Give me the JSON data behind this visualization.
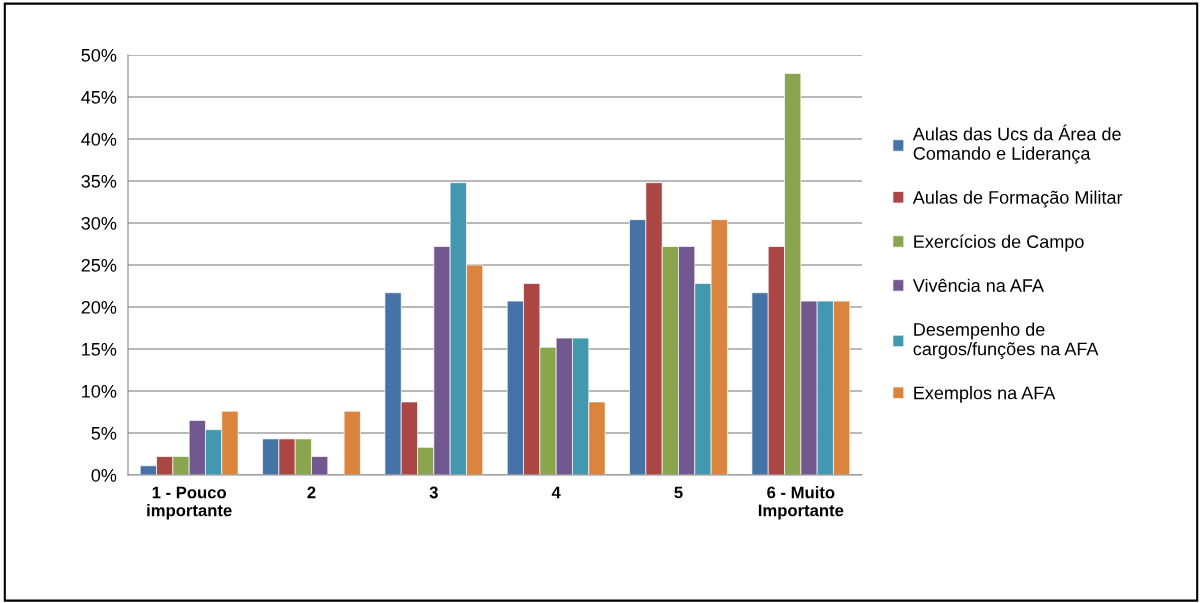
{
  "chart_data": {
    "type": "bar",
    "categories": [
      "1 - Pouco importante",
      "2",
      "3",
      "4",
      "5",
      "6 - Muito Importante"
    ],
    "series": [
      {
        "name": "Aulas das Ucs da Área de Comando e Liderança",
        "color": "#4572a7",
        "values": [
          1.1,
          4.3,
          21.7,
          20.7,
          30.4,
          21.7
        ]
      },
      {
        "name": "Aulas de Formação Militar",
        "color": "#aa4643",
        "values": [
          2.2,
          4.3,
          8.7,
          22.8,
          34.8,
          27.2
        ]
      },
      {
        "name": "Exercícios de Campo",
        "color": "#89a54e",
        "values": [
          2.2,
          4.3,
          3.3,
          15.2,
          27.2,
          47.8
        ]
      },
      {
        "name": "Vivência na AFA",
        "color": "#71588f",
        "values": [
          6.5,
          2.2,
          27.2,
          16.3,
          27.2,
          20.7
        ]
      },
      {
        "name": "Desempenho de cargos/funções na AFA",
        "color": "#4198af",
        "values": [
          5.4,
          null,
          34.8,
          16.3,
          22.8,
          20.7
        ]
      },
      {
        "name": "Exemplos na AFA",
        "color": "#db843d",
        "values": [
          7.6,
          7.6,
          25.0,
          8.7,
          30.4,
          20.7
        ]
      }
    ],
    "ylim": [
      0,
      50
    ],
    "yticks": [
      {
        "value": 0,
        "label": "0%"
      },
      {
        "value": 5,
        "label": "5%"
      },
      {
        "value": 10,
        "label": "10%"
      },
      {
        "value": 15,
        "label": "15%"
      },
      {
        "value": 20,
        "label": "20%"
      },
      {
        "value": 25,
        "label": "25%"
      },
      {
        "value": 30,
        "label": "30%"
      },
      {
        "value": 35,
        "label": "35%"
      },
      {
        "value": 40,
        "label": "40%"
      },
      {
        "value": 45,
        "label": "45%"
      },
      {
        "value": 50,
        "label": "50%"
      }
    ],
    "grid": "y",
    "legend": "right"
  }
}
